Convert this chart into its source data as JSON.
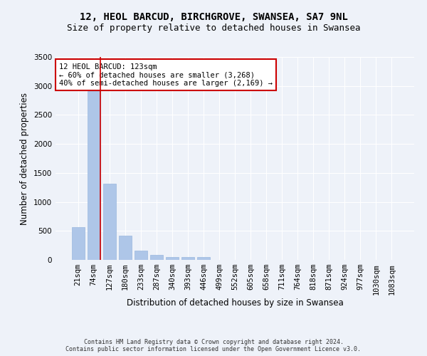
{
  "title_line1": "12, HEOL BARCUD, BIRCHGROVE, SWANSEA, SA7 9NL",
  "title_line2": "Size of property relative to detached houses in Swansea",
  "xlabel": "Distribution of detached houses by size in Swansea",
  "ylabel": "Number of detached properties",
  "footer": "Contains HM Land Registry data © Crown copyright and database right 2024.\nContains public sector information licensed under the Open Government Licence v3.0.",
  "categories": [
    "21sqm",
    "74sqm",
    "127sqm",
    "180sqm",
    "233sqm",
    "287sqm",
    "340sqm",
    "393sqm",
    "446sqm",
    "499sqm",
    "552sqm",
    "605sqm",
    "658sqm",
    "711sqm",
    "764sqm",
    "818sqm",
    "871sqm",
    "924sqm",
    "977sqm",
    "1030sqm",
    "1083sqm"
  ],
  "values": [
    570,
    2910,
    1310,
    420,
    155,
    80,
    50,
    45,
    45,
    0,
    0,
    0,
    0,
    0,
    0,
    0,
    0,
    0,
    0,
    0,
    0
  ],
  "bar_color": "#aec6e8",
  "bar_edgecolor": "#9ab8de",
  "marker_index": 1,
  "marker_color": "#cc0000",
  "annotation_text": "12 HEOL BARCUD: 123sqm\n← 60% of detached houses are smaller (3,268)\n40% of semi-detached houses are larger (2,169) →",
  "annotation_box_edgecolor": "#cc0000",
  "annotation_box_facecolor": "#ffffff",
  "ylim": [
    0,
    3500
  ],
  "yticks": [
    0,
    500,
    1000,
    1500,
    2000,
    2500,
    3000,
    3500
  ],
  "background_color": "#eef2f9",
  "grid_color": "#ffffff",
  "title_fontsize": 10,
  "subtitle_fontsize": 9,
  "axis_label_fontsize": 8.5,
  "tick_fontsize": 7.5,
  "footer_fontsize": 6,
  "annotation_fontsize": 7.5
}
